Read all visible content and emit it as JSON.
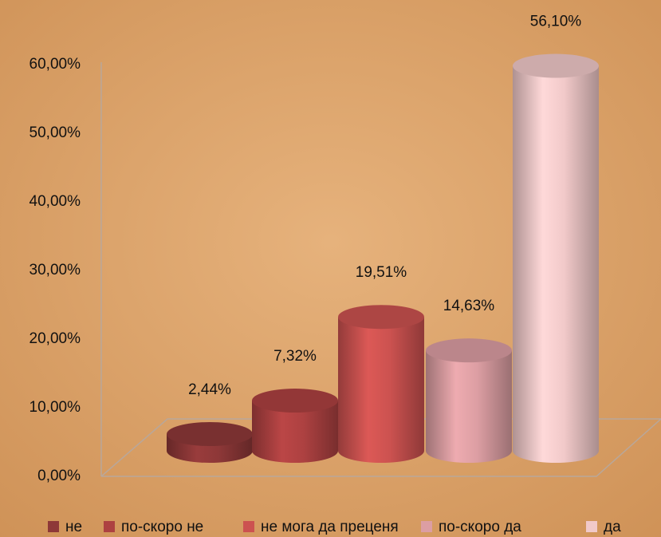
{
  "chart_data": {
    "type": "bar3d",
    "series": [
      {
        "name": "не",
        "color": "#8e3838",
        "values": [
          2.44
        ],
        "value_labels": [
          "2,44%"
        ]
      },
      {
        "name": "по-скоро не",
        "color": "#ad4141",
        "values": [
          7.32
        ],
        "value_labels": [
          "7,32%"
        ]
      },
      {
        "name": "не мога да преценя",
        "color": "#cc5250",
        "values": [
          19.51
        ],
        "value_labels": [
          "19,51%"
        ]
      },
      {
        "name": "по-скоро да",
        "color": "#dc9ea3",
        "values": [
          14.63
        ],
        "value_labels": [
          "14,63%"
        ]
      },
      {
        "name": "да",
        "color": "#f1c9c9",
        "values": [
          56.1
        ],
        "value_labels": [
          "56,10%"
        ]
      }
    ],
    "ylim": [
      0,
      60
    ],
    "yticks": [
      {
        "value": 0,
        "label": "0,00%"
      },
      {
        "value": 10,
        "label": "10,00%"
      },
      {
        "value": 20,
        "label": "20,00%"
      },
      {
        "value": 30,
        "label": "30,00%"
      },
      {
        "value": 40,
        "label": "40,00%"
      },
      {
        "value": 50,
        "label": "50,00%"
      },
      {
        "value": 60,
        "label": "60,00%"
      }
    ],
    "grid": false,
    "legend": "bottom"
  }
}
